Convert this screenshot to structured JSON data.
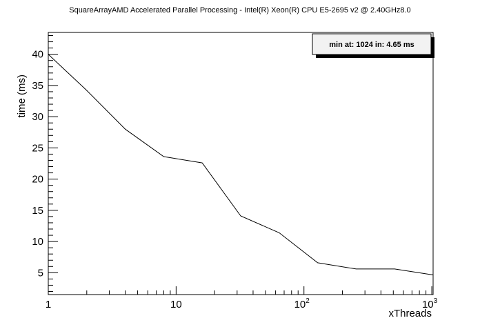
{
  "chart_data": {
    "type": "line",
    "title": "SquareArrayAMD Accelerated Parallel Processing - Intel(R) Xeon(R) CPU E5-2695 v2 @ 2.40GHz8.0",
    "xlabel": "xThreads",
    "ylabel": "time (ms)",
    "x_scale": "log",
    "xlim": [
      1,
      1024
    ],
    "ylim": [
      1.5,
      43.5
    ],
    "x_tick_labels": [
      "1",
      "10",
      "10",
      "10"
    ],
    "x_tick_exponents": [
      "",
      "",
      "2",
      "3"
    ],
    "y_ticks": [
      5,
      10,
      15,
      20,
      25,
      30,
      35,
      40
    ],
    "grid": false,
    "legend": "none",
    "stats_box": "min at: 1024 in: 4.65 ms",
    "series": [
      {
        "x": [
          1,
          2,
          4,
          8,
          16,
          32,
          64,
          128,
          256,
          512,
          1024
        ],
        "values": [
          40.0,
          34.2,
          28.0,
          23.6,
          22.6,
          14.1,
          11.4,
          6.6,
          5.6,
          5.6,
          4.65
        ]
      }
    ],
    "colors": {
      "line": "#000000",
      "frame": "#000000",
      "stats_fill": "#f2f2f2"
    }
  }
}
